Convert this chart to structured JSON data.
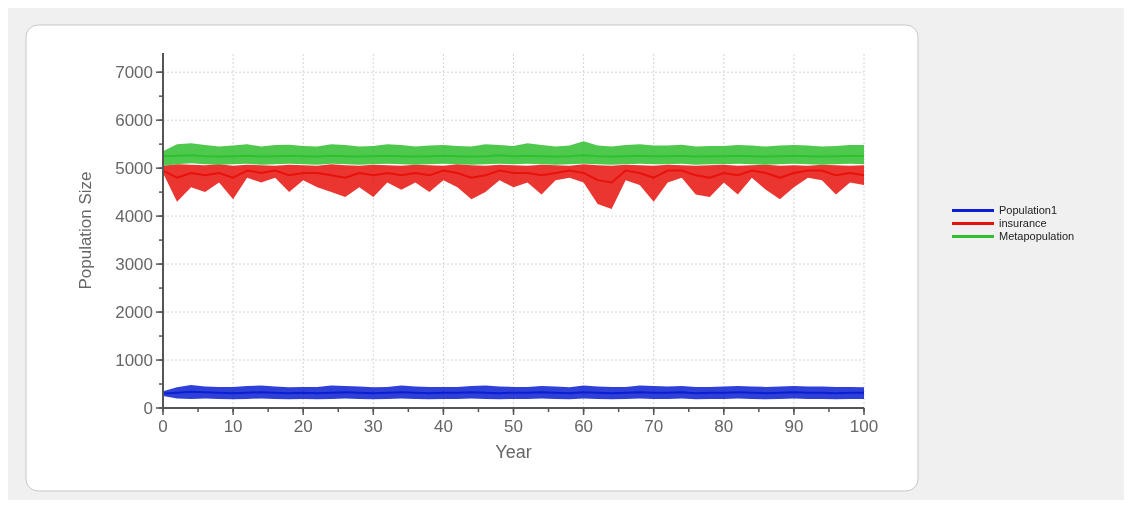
{
  "chart_data": {
    "type": "line",
    "xlabel": "Year",
    "ylabel": "Population Size",
    "x": [
      0,
      2,
      4,
      6,
      8,
      10,
      12,
      14,
      16,
      18,
      20,
      22,
      24,
      26,
      28,
      30,
      32,
      34,
      36,
      38,
      40,
      42,
      44,
      46,
      48,
      50,
      52,
      54,
      56,
      58,
      60,
      62,
      64,
      66,
      68,
      70,
      72,
      74,
      76,
      78,
      80,
      82,
      84,
      86,
      88,
      90,
      92,
      94,
      96,
      98,
      100
    ],
    "xlim": [
      0,
      100
    ],
    "xticks": [
      0,
      10,
      20,
      30,
      40,
      50,
      60,
      70,
      80,
      90,
      100
    ],
    "ylim": [
      0,
      7400
    ],
    "yticks": [
      0,
      1000,
      2000,
      3000,
      4000,
      5000,
      6000,
      7000
    ],
    "grid": true,
    "legend": "right",
    "line_style": "solid",
    "marker": "none",
    "series": [
      {
        "name": "Population1",
        "color": "#0a1ed2",
        "values": [
          300,
          320,
          340,
          330,
          320,
          310,
          320,
          330,
          320,
          310,
          320,
          310,
          320,
          330,
          320,
          310,
          320,
          330,
          320,
          310,
          320,
          320,
          330,
          320,
          310,
          320,
          320,
          330,
          320,
          310,
          330,
          320,
          310,
          320,
          330,
          320,
          320,
          330,
          310,
          320,
          320,
          330,
          320,
          310,
          320,
          330,
          320,
          320,
          310,
          320,
          320
        ],
        "lower": [
          250,
          200,
          190,
          200,
          190,
          180,
          190,
          200,
          190,
          180,
          190,
          180,
          190,
          200,
          190,
          180,
          190,
          200,
          190,
          180,
          190,
          190,
          200,
          190,
          180,
          190,
          190,
          200,
          190,
          180,
          200,
          190,
          180,
          190,
          200,
          190,
          190,
          200,
          180,
          190,
          190,
          200,
          190,
          180,
          190,
          200,
          190,
          190,
          180,
          190,
          190
        ],
        "upper": [
          350,
          430,
          480,
          450,
          440,
          440,
          460,
          470,
          450,
          430,
          440,
          440,
          470,
          460,
          450,
          430,
          440,
          470,
          450,
          440,
          440,
          440,
          460,
          470,
          450,
          440,
          440,
          460,
          450,
          430,
          470,
          450,
          440,
          440,
          470,
          460,
          450,
          460,
          440,
          440,
          450,
          460,
          450,
          440,
          450,
          460,
          450,
          450,
          440,
          440,
          430
        ]
      },
      {
        "name": "insurance",
        "color": "#e8120c",
        "values": [
          4950,
          4800,
          4900,
          4850,
          4900,
          4800,
          4950,
          4900,
          4950,
          4850,
          4900,
          4900,
          4850,
          4800,
          4900,
          4850,
          4900,
          4850,
          4900,
          4850,
          4950,
          4900,
          4800,
          4850,
          4950,
          4900,
          4900,
          4850,
          4900,
          4950,
          4900,
          4750,
          4700,
          4950,
          4900,
          4800,
          4950,
          4950,
          4850,
          4800,
          4900,
          4850,
          4950,
          4900,
          4800,
          4900,
          4950,
          4950,
          4850,
          4900,
          4850
        ],
        "lower": [
          4900,
          4300,
          4600,
          4500,
          4700,
          4350,
          4800,
          4700,
          4800,
          4500,
          4750,
          4600,
          4500,
          4400,
          4600,
          4400,
          4700,
          4550,
          4700,
          4500,
          4750,
          4600,
          4350,
          4500,
          4750,
          4600,
          4700,
          4450,
          4750,
          4800,
          4700,
          4250,
          4150,
          4750,
          4650,
          4300,
          4700,
          4800,
          4450,
          4400,
          4700,
          4450,
          4800,
          4550,
          4350,
          4600,
          4800,
          4750,
          4450,
          4700,
          4650
        ],
        "upper": [
          5050,
          5080,
          5070,
          5060,
          5080,
          5050,
          5070,
          5060,
          5050,
          5070,
          5060,
          5050,
          5080,
          5060,
          5050,
          5070,
          5060,
          5050,
          5070,
          5060,
          5050,
          5080,
          5060,
          5050,
          5070,
          5060,
          5050,
          5070,
          5060,
          5050,
          5080,
          5060,
          5050,
          5070,
          5060,
          5050,
          5070,
          5060,
          5050,
          5060,
          5070,
          5050,
          5060,
          5070,
          5050,
          5060,
          5050,
          5070,
          5060,
          5050,
          5060
        ]
      },
      {
        "name": "Metapopulation",
        "color": "#2fc02f",
        "values": [
          5250,
          5260,
          5270,
          5250,
          5240,
          5250,
          5260,
          5240,
          5250,
          5260,
          5250,
          5240,
          5260,
          5250,
          5240,
          5250,
          5260,
          5250,
          5240,
          5250,
          5260,
          5250,
          5240,
          5250,
          5270,
          5250,
          5260,
          5250,
          5240,
          5250,
          5270,
          5250,
          5240,
          5250,
          5260,
          5250,
          5250,
          5260,
          5240,
          5250,
          5250,
          5260,
          5250,
          5240,
          5250,
          5260,
          5250,
          5240,
          5250,
          5260,
          5250
        ],
        "lower": [
          5050,
          5080,
          5100,
          5080,
          5070,
          5080,
          5090,
          5070,
          5080,
          5090,
          5080,
          5070,
          5090,
          5080,
          5070,
          5080,
          5090,
          5080,
          5070,
          5080,
          5090,
          5080,
          5070,
          5080,
          5090,
          5080,
          5090,
          5080,
          5070,
          5080,
          5090,
          5080,
          5070,
          5080,
          5090,
          5080,
          5080,
          5090,
          5070,
          5080,
          5080,
          5090,
          5080,
          5070,
          5080,
          5090,
          5080,
          5070,
          5080,
          5090,
          5080
        ],
        "upper": [
          5350,
          5500,
          5520,
          5480,
          5450,
          5470,
          5500,
          5450,
          5480,
          5490,
          5460,
          5450,
          5500,
          5480,
          5450,
          5460,
          5500,
          5480,
          5450,
          5470,
          5480,
          5460,
          5450,
          5500,
          5480,
          5460,
          5520,
          5480,
          5450,
          5470,
          5560,
          5470,
          5450,
          5480,
          5500,
          5470,
          5470,
          5490,
          5450,
          5460,
          5460,
          5480,
          5470,
          5450,
          5470,
          5480,
          5470,
          5450,
          5460,
          5480,
          5480
        ]
      }
    ]
  }
}
